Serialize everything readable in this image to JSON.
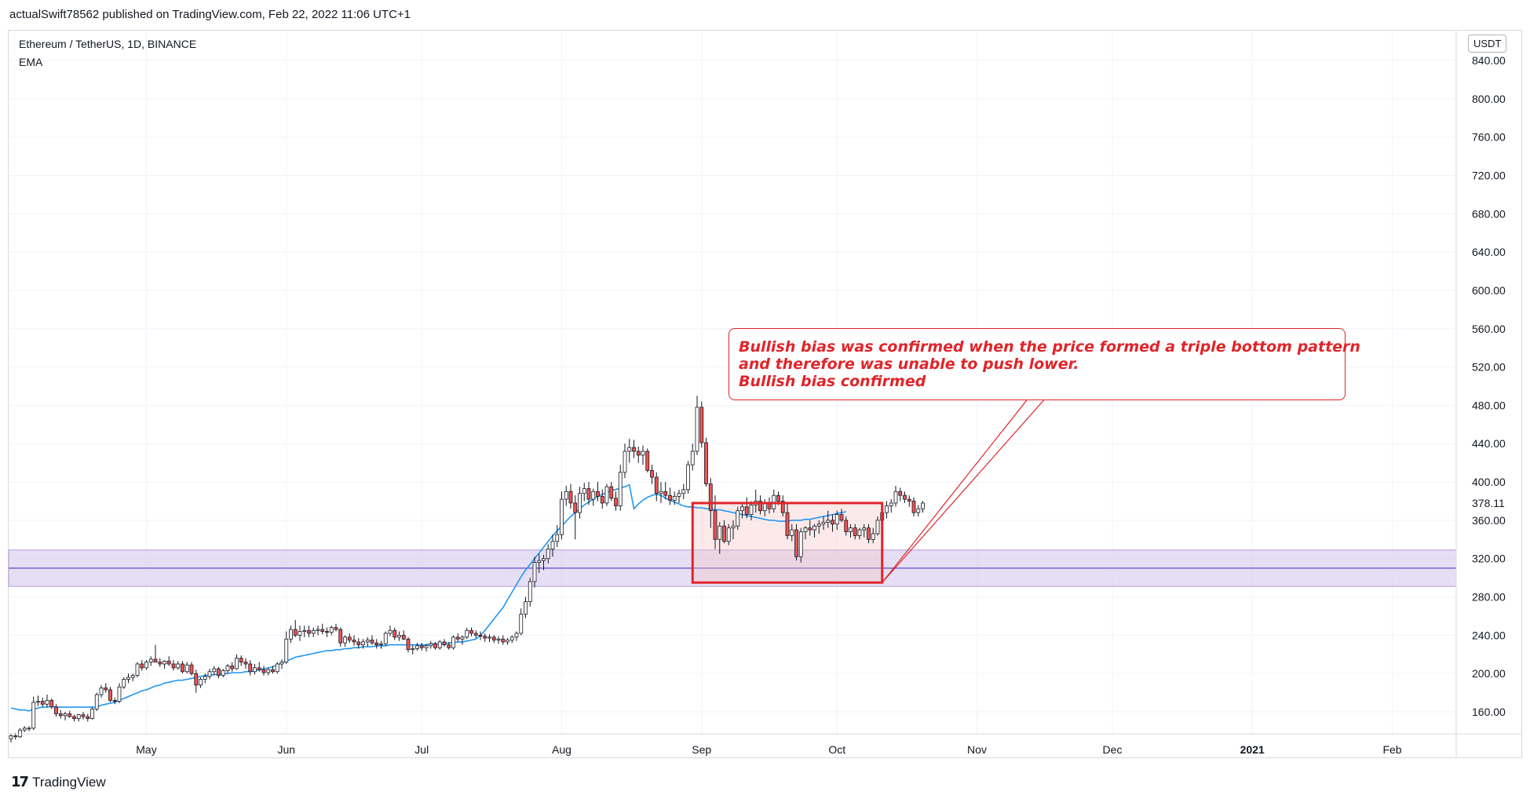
{
  "header": {
    "published_text": "actualSwift78562 published on TradingView.com, Feb 22, 2022 11:06 UTC+1"
  },
  "legend": {
    "symbol_line": "Ethereum / TetherUS, 1D, BINANCE",
    "indicator": "EMA"
  },
  "price_scale": {
    "currency": "USDT",
    "last_price_label": "378.11"
  },
  "annotation": {
    "lines": [
      "Bullish bias was confirmed when the price formed a triple bottom pattern",
      "and therefore was unable to push lower.",
      "Bullish bias confirmed"
    ]
  },
  "footer": {
    "brand": "TradingView"
  },
  "colors": {
    "up_candle": "#ffffff",
    "down_candle": "#f05350",
    "candle_border": "#131722",
    "ema_line": "#2196f3",
    "support_zone": "#d1c4e9",
    "support_line": "#5b4bc4",
    "annotation_red": "#e0242a",
    "grid": "#f0f3fa"
  },
  "chart_data": {
    "type": "candlestick",
    "symbol": "Ethereum / TetherUS",
    "interval": "1D",
    "exchange": "BINANCE",
    "y_axis": {
      "ticks": [
        160,
        200,
        240,
        280,
        320,
        360,
        400,
        440,
        480,
        520,
        560,
        600,
        640,
        680,
        720,
        760,
        800,
        840
      ],
      "tick_labels": [
        "160.00",
        "200.00",
        "240.00",
        "280.00",
        "320.00",
        "360.00",
        "400.00",
        "440.00",
        "480.00",
        "520.00",
        "560.00",
        "600.00",
        "640.00",
        "680.00",
        "720.00",
        "760.00",
        "800.00",
        "840.00"
      ],
      "range": [
        132,
        858
      ]
    },
    "x_axis": {
      "tick_labels": [
        "May",
        "Jun",
        "Jul",
        "Aug",
        "Sep",
        "Oct",
        "Nov",
        "Dec",
        "2021",
        "Feb"
      ],
      "tick_dates": [
        "2020-05-01",
        "2020-06-01",
        "2020-07-01",
        "2020-08-01",
        "2020-09-01",
        "2020-10-01",
        "2020-11-01",
        "2020-12-01",
        "2021-01-01",
        "2021-02-01"
      ],
      "range": [
        "2020-04-01",
        "2021-02-28"
      ]
    },
    "start_date": "2020-04-01",
    "candles_ohlc": [
      [
        132,
        137,
        128,
        135
      ],
      [
        135,
        138,
        131,
        134
      ],
      [
        134,
        143,
        133,
        141
      ],
      [
        141,
        145,
        139,
        143
      ],
      [
        143,
        145,
        140,
        143
      ],
      [
        143,
        176,
        141,
        170
      ],
      [
        170,
        177,
        166,
        171
      ],
      [
        171,
        175,
        165,
        168
      ],
      [
        168,
        178,
        165,
        172
      ],
      [
        172,
        174,
        163,
        165
      ],
      [
        165,
        168,
        155,
        158
      ],
      [
        158,
        162,
        153,
        156
      ],
      [
        156,
        160,
        151,
        158
      ],
      [
        158,
        161,
        154,
        155
      ],
      [
        155,
        157,
        150,
        153
      ],
      [
        153,
        158,
        150,
        157
      ],
      [
        157,
        160,
        152,
        155
      ],
      [
        155,
        158,
        150,
        153
      ],
      [
        153,
        165,
        152,
        163
      ],
      [
        163,
        180,
        161,
        178
      ],
      [
        178,
        188,
        175,
        185
      ],
      [
        185,
        190,
        180,
        183
      ],
      [
        183,
        186,
        170,
        172
      ],
      [
        172,
        175,
        168,
        171
      ],
      [
        171,
        190,
        169,
        186
      ],
      [
        186,
        196,
        184,
        194
      ],
      [
        194,
        200,
        190,
        196
      ],
      [
        196,
        200,
        192,
        198
      ],
      [
        198,
        212,
        196,
        210
      ],
      [
        210,
        214,
        203,
        206
      ],
      [
        206,
        214,
        204,
        212
      ],
      [
        212,
        218,
        208,
        215
      ],
      [
        215,
        230,
        213,
        212
      ],
      [
        212,
        216,
        207,
        210
      ],
      [
        210,
        214,
        205,
        213
      ],
      [
        213,
        218,
        208,
        210
      ],
      [
        210,
        214,
        203,
        206
      ],
      [
        206,
        213,
        204,
        210
      ],
      [
        210,
        213,
        200,
        202
      ],
      [
        202,
        212,
        200,
        209
      ],
      [
        209,
        212,
        198,
        200
      ],
      [
        200,
        204,
        180,
        188
      ],
      [
        188,
        196,
        185,
        194
      ],
      [
        194,
        200,
        190,
        197
      ],
      [
        197,
        205,
        194,
        202
      ],
      [
        202,
        208,
        198,
        205
      ],
      [
        205,
        207,
        195,
        198
      ],
      [
        198,
        205,
        196,
        203
      ],
      [
        203,
        210,
        200,
        208
      ],
      [
        208,
        212,
        202,
        205
      ],
      [
        205,
        220,
        204,
        216
      ],
      [
        216,
        219,
        208,
        212
      ],
      [
        212,
        216,
        205,
        210
      ],
      [
        210,
        214,
        198,
        202
      ],
      [
        202,
        210,
        199,
        206
      ],
      [
        206,
        212,
        202,
        204
      ],
      [
        204,
        208,
        198,
        201
      ],
      [
        201,
        206,
        198,
        204
      ],
      [
        204,
        208,
        200,
        202
      ],
      [
        202,
        212,
        200,
        210
      ],
      [
        210,
        215,
        205,
        212
      ],
      [
        212,
        244,
        210,
        236
      ],
      [
        236,
        250,
        232,
        246
      ],
      [
        246,
        256,
        238,
        240
      ],
      [
        240,
        250,
        234,
        244
      ],
      [
        244,
        250,
        238,
        245
      ],
      [
        245,
        250,
        238,
        242
      ],
      [
        242,
        248,
        238,
        245
      ],
      [
        245,
        250,
        240,
        246
      ],
      [
        246,
        252,
        241,
        244
      ],
      [
        244,
        248,
        238,
        243
      ],
      [
        243,
        250,
        240,
        248
      ],
      [
        248,
        252,
        244,
        246
      ],
      [
        246,
        248,
        228,
        232
      ],
      [
        232,
        240,
        228,
        238
      ],
      [
        238,
        242,
        232,
        235
      ],
      [
        235,
        240,
        229,
        233
      ],
      [
        233,
        237,
        226,
        230
      ],
      [
        230,
        236,
        226,
        233
      ],
      [
        233,
        238,
        228,
        235
      ],
      [
        235,
        240,
        230,
        232
      ],
      [
        232,
        236,
        226,
        230
      ],
      [
        230,
        234,
        226,
        231
      ],
      [
        231,
        244,
        229,
        242
      ],
      [
        242,
        250,
        239,
        245
      ],
      [
        245,
        248,
        235,
        238
      ],
      [
        238,
        244,
        234,
        240
      ],
      [
        240,
        245,
        235,
        236
      ],
      [
        236,
        238,
        222,
        225
      ],
      [
        225,
        230,
        220,
        226
      ],
      [
        226,
        232,
        224,
        229
      ],
      [
        229,
        232,
        224,
        227
      ],
      [
        227,
        231,
        223,
        229
      ],
      [
        229,
        234,
        226,
        231
      ],
      [
        231,
        233,
        225,
        227
      ],
      [
        227,
        235,
        225,
        233
      ],
      [
        233,
        236,
        228,
        230
      ],
      [
        230,
        233,
        225,
        227
      ],
      [
        227,
        240,
        225,
        238
      ],
      [
        238,
        242,
        233,
        236
      ],
      [
        236,
        240,
        230,
        238
      ],
      [
        238,
        248,
        236,
        245
      ],
      [
        245,
        248,
        239,
        242
      ],
      [
        242,
        245,
        237,
        240
      ],
      [
        240,
        244,
        235,
        239
      ],
      [
        239,
        242,
        233,
        237
      ],
      [
        237,
        241,
        233,
        238
      ],
      [
        238,
        240,
        232,
        235
      ],
      [
        235,
        239,
        231,
        236
      ],
      [
        236,
        240,
        230,
        233
      ],
      [
        233,
        237,
        230,
        235
      ],
      [
        235,
        240,
        232,
        238
      ],
      [
        238,
        244,
        234,
        242
      ],
      [
        242,
        268,
        240,
        262
      ],
      [
        262,
        280,
        258,
        275
      ],
      [
        275,
        300,
        270,
        296
      ],
      [
        296,
        322,
        290,
        316
      ],
      [
        316,
        325,
        305,
        318
      ],
      [
        318,
        324,
        308,
        320
      ],
      [
        320,
        335,
        315,
        330
      ],
      [
        330,
        345,
        322,
        338
      ],
      [
        338,
        355,
        332,
        345
      ],
      [
        345,
        390,
        340,
        382
      ],
      [
        382,
        396,
        375,
        390
      ],
      [
        390,
        398,
        372,
        378
      ],
      [
        378,
        386,
        340,
        368
      ],
      [
        368,
        395,
        362,
        388
      ],
      [
        388,
        399,
        380,
        393
      ],
      [
        393,
        400,
        376,
        382
      ],
      [
        382,
        393,
        375,
        390
      ],
      [
        390,
        400,
        380,
        385
      ],
      [
        385,
        392,
        372,
        378
      ],
      [
        378,
        398,
        375,
        395
      ],
      [
        395,
        400,
        380,
        383
      ],
      [
        383,
        390,
        370,
        375
      ],
      [
        375,
        418,
        370,
        410
      ],
      [
        410,
        440,
        404,
        432
      ],
      [
        432,
        445,
        420,
        436
      ],
      [
        436,
        444,
        425,
        432
      ],
      [
        432,
        437,
        420,
        428
      ],
      [
        428,
        438,
        418,
        432
      ],
      [
        432,
        435,
        410,
        412
      ],
      [
        412,
        418,
        398,
        405
      ],
      [
        405,
        410,
        380,
        388
      ],
      [
        388,
        400,
        378,
        390
      ],
      [
        390,
        400,
        382,
        386
      ],
      [
        386,
        394,
        376,
        381
      ],
      [
        381,
        390,
        376,
        385
      ],
      [
        385,
        392,
        378,
        388
      ],
      [
        388,
        398,
        382,
        392
      ],
      [
        392,
        422,
        388,
        418
      ],
      [
        418,
        440,
        412,
        432
      ],
      [
        432,
        490,
        428,
        478
      ],
      [
        478,
        484,
        436,
        441
      ],
      [
        441,
        446,
        395,
        398
      ],
      [
        398,
        404,
        352,
        370
      ],
      [
        370,
        386,
        330,
        340
      ],
      [
        340,
        358,
        325,
        354
      ],
      [
        354,
        360,
        336,
        338
      ],
      [
        338,
        356,
        334,
        352
      ],
      [
        352,
        360,
        340,
        354
      ],
      [
        354,
        374,
        350,
        370
      ],
      [
        370,
        378,
        362,
        374
      ],
      [
        374,
        384,
        362,
        366
      ],
      [
        366,
        380,
        360,
        376
      ],
      [
        376,
        392,
        368,
        380
      ],
      [
        380,
        386,
        366,
        370
      ],
      [
        370,
        382,
        364,
        378
      ],
      [
        378,
        384,
        367,
        372
      ],
      [
        372,
        392,
        368,
        386
      ],
      [
        386,
        390,
        376,
        380
      ],
      [
        380,
        386,
        364,
        368
      ],
      [
        368,
        378,
        340,
        344
      ],
      [
        344,
        356,
        338,
        350
      ],
      [
        350,
        356,
        318,
        322
      ],
      [
        322,
        352,
        316,
        348
      ],
      [
        348,
        354,
        340,
        352
      ],
      [
        352,
        360,
        344,
        350
      ],
      [
        350,
        356,
        342,
        354
      ],
      [
        354,
        360,
        346,
        356
      ],
      [
        356,
        364,
        350,
        358
      ],
      [
        358,
        370,
        352,
        360
      ],
      [
        360,
        366,
        348,
        356
      ],
      [
        356,
        370,
        350,
        366
      ],
      [
        366,
        372,
        358,
        360
      ],
      [
        360,
        364,
        344,
        348
      ],
      [
        348,
        356,
        342,
        352
      ],
      [
        352,
        356,
        340,
        344
      ],
      [
        344,
        352,
        340,
        350
      ],
      [
        350,
        356,
        342,
        352
      ],
      [
        352,
        356,
        336,
        340
      ],
      [
        340,
        352,
        336,
        346
      ],
      [
        346,
        364,
        344,
        360
      ],
      [
        360,
        372,
        356,
        368
      ],
      [
        368,
        380,
        362,
        375
      ],
      [
        375,
        382,
        368,
        378
      ],
      [
        378,
        396,
        374,
        390
      ],
      [
        390,
        394,
        380,
        386
      ],
      [
        386,
        390,
        378,
        382
      ],
      [
        382,
        386,
        374,
        380
      ],
      [
        380,
        384,
        364,
        368
      ],
      [
        368,
        376,
        364,
        372
      ],
      [
        372,
        380,
        368,
        378
      ]
    ],
    "series": [
      {
        "type": "line",
        "ema_values": [
          164,
          163,
          162,
          162,
          161,
          163,
          164,
          165,
          165,
          166,
          165,
          165,
          165,
          165,
          165,
          165,
          165,
          165,
          165,
          165,
          167,
          168,
          169,
          170,
          172,
          174,
          176,
          178,
          180,
          182,
          183,
          185,
          187,
          188,
          190,
          191,
          192,
          193,
          193,
          194,
          195,
          196,
          197,
          198,
          198,
          199,
          199,
          200,
          200,
          201,
          201,
          201,
          202,
          202,
          203,
          204,
          205,
          206,
          207,
          209,
          211,
          213,
          215,
          217,
          218,
          219,
          220,
          221,
          222,
          223,
          224,
          224,
          225,
          225,
          226,
          226,
          227,
          227,
          228,
          228,
          228,
          229,
          229,
          229,
          230,
          230,
          230,
          230,
          230,
          230,
          230,
          230,
          230,
          231,
          231,
          231,
          231,
          232,
          232,
          233,
          233,
          234,
          235,
          236,
          240,
          245,
          251,
          257,
          263,
          269,
          277,
          285,
          293,
          301,
          308,
          314,
          320,
          326,
          332,
          338,
          344,
          349,
          354,
          359,
          364,
          368,
          372,
          376,
          379,
          382,
          385,
          387,
          389,
          391,
          392,
          394,
          395,
          397,
          372,
          377,
          381,
          384,
          386,
          387,
          386,
          383,
          381,
          379,
          377,
          375,
          374,
          374,
          373,
          373,
          372,
          372,
          371,
          371,
          370,
          369,
          368,
          367,
          366,
          365,
          364,
          363,
          362,
          361,
          360,
          360,
          359,
          359,
          359,
          360,
          360,
          360,
          361,
          361,
          362,
          363,
          364,
          365,
          366,
          367,
          368,
          369
        ]
      }
    ],
    "support_zone": {
      "low": 291,
      "high": 329,
      "line": 310
    },
    "highlight_box": {
      "start_date": "2020-08-30",
      "end_date": "2020-10-11",
      "low": 295,
      "high": 378
    },
    "last_price": 378.11,
    "grid": true
  }
}
